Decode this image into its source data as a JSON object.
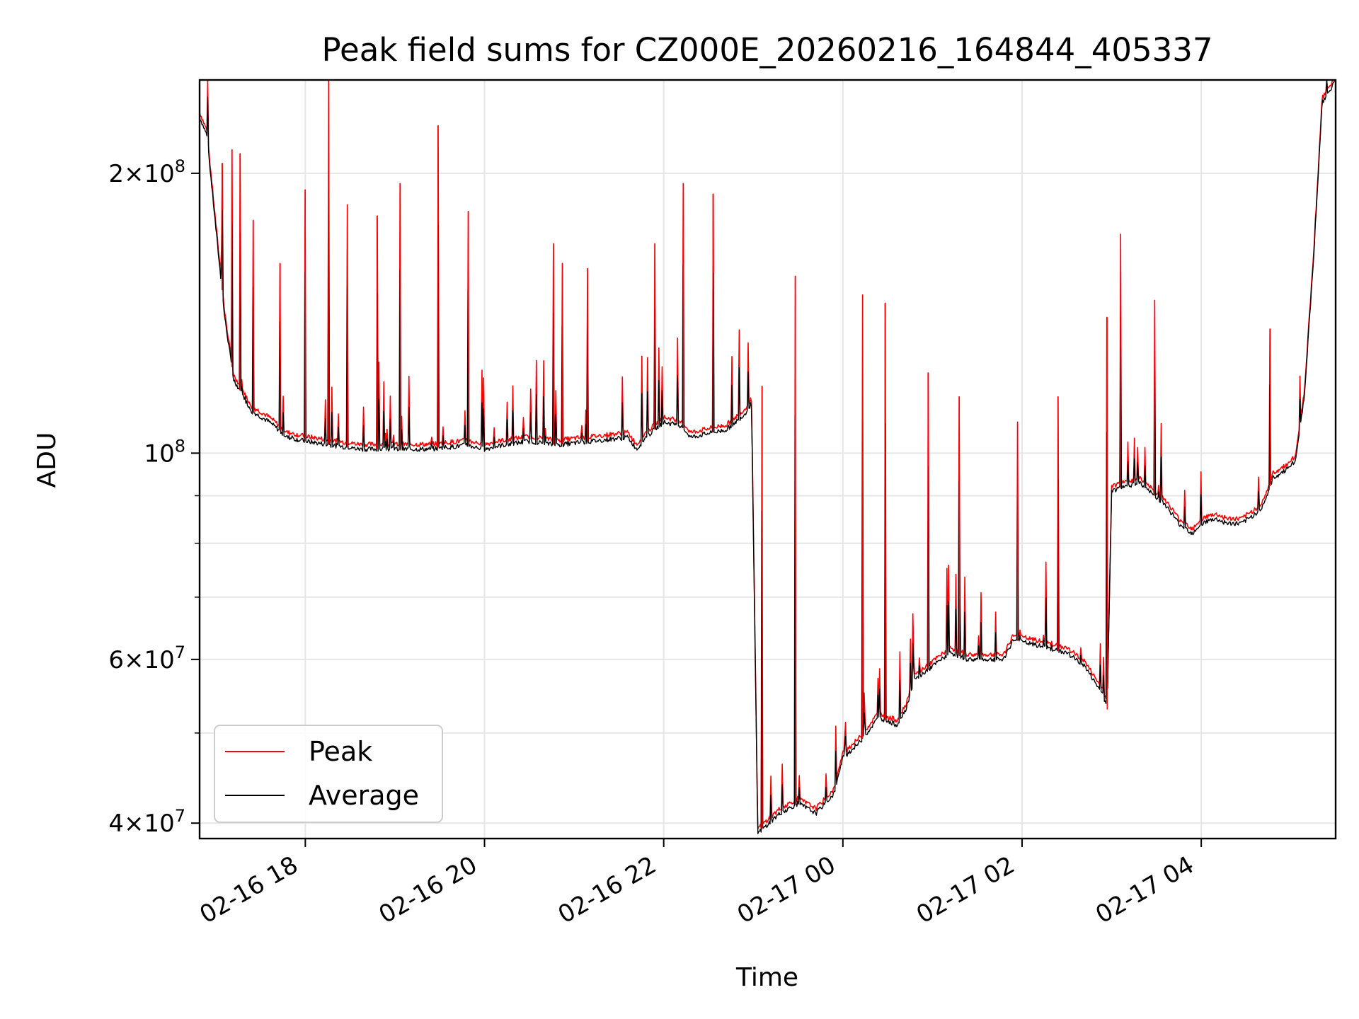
{
  "chart_data": {
    "type": "line",
    "title": "Peak field sums for CZ000E_20260216_164844_405337",
    "xlabel": "Time",
    "ylabel": "ADU",
    "yscale": "log",
    "ylim": [
      38500000,
      252000000
    ],
    "xlim_hours": [
      16.82,
      29.5
    ],
    "x_ticks": [
      {
        "label": "02-16 18",
        "hour": 18
      },
      {
        "label": "02-16 20",
        "hour": 20
      },
      {
        "label": "02-16 22",
        "hour": 22
      },
      {
        "label": "02-17 00",
        "hour": 24
      },
      {
        "label": "02-17 02",
        "hour": 26
      },
      {
        "label": "02-17 04",
        "hour": 28
      }
    ],
    "y_ticks": [
      {
        "base": "4",
        "exp": "7",
        "value": 40000000
      },
      {
        "base": "6",
        "exp": "7",
        "value": 60000000
      },
      {
        "base": "10",
        "exp": "8",
        "value": 100000000,
        "only_power": true
      },
      {
        "base": "2",
        "exp": "8",
        "value": 200000000
      }
    ],
    "y_minor_ticks": [
      50000000,
      70000000,
      80000000,
      90000000
    ],
    "grid": true,
    "legend": {
      "position": "lower-left",
      "entries": [
        {
          "name": "Peak",
          "color": "#ff0000"
        },
        {
          "name": "Average",
          "color": "#000000"
        }
      ]
    },
    "series": [
      {
        "name": "Average",
        "color": "#000000",
        "x": [
          16.82,
          16.9,
          17.0,
          17.1,
          17.2,
          17.4,
          17.6,
          17.8,
          18.0,
          18.3,
          18.6,
          19.0,
          19.4,
          19.8,
          20.0,
          20.2,
          20.5,
          20.8,
          21.2,
          21.6,
          21.7,
          21.8,
          22.0,
          22.2,
          22.3,
          22.5,
          22.7,
          22.9,
          22.95,
          22.98,
          23.05,
          23.3,
          23.5,
          23.7,
          23.9,
          24.0,
          24.2,
          24.4,
          24.6,
          24.7,
          24.8,
          25.0,
          25.2,
          25.4,
          25.6,
          25.8,
          25.9,
          26.2,
          26.5,
          26.7,
          26.9,
          26.95,
          27.0,
          27.3,
          27.6,
          27.75,
          27.9,
          28.0,
          28.15,
          28.3,
          28.45,
          28.6,
          28.7,
          28.8,
          28.95,
          29.05,
          29.15,
          29.25,
          29.35,
          29.5
        ],
        "values": [
          230000000,
          220000000,
          175000000,
          140000000,
          120000000,
          111000000,
          108000000,
          104000000,
          103000000,
          102000000,
          101000000,
          101000000,
          101000000,
          102000000,
          101000000,
          102000000,
          103000000,
          102000000,
          103000000,
          104000000,
          101000000,
          104000000,
          108000000,
          107000000,
          104000000,
          105000000,
          106000000,
          110000000,
          112000000,
          113000000,
          39000000,
          41000000,
          42000000,
          41000000,
          43000000,
          47000000,
          49000000,
          52000000,
          51000000,
          53000000,
          57000000,
          59000000,
          61000000,
          60000000,
          60000000,
          60000000,
          63000000,
          62000000,
          61000000,
          59000000,
          55000000,
          53000000,
          91000000,
          93000000,
          88000000,
          84000000,
          82000000,
          84000000,
          85000000,
          84000000,
          84000000,
          86000000,
          88000000,
          94000000,
          96000000,
          98000000,
          115000000,
          160000000,
          238000000,
          252000000
        ]
      },
      {
        "name": "Peak",
        "color": "#ff0000",
        "x": [
          17.07,
          17.18,
          17.27,
          17.42,
          17.72,
          18.0,
          18.26,
          18.47,
          18.8,
          19.06,
          19.48,
          19.82,
          20.77,
          20.87,
          21.15,
          21.9,
          22.22,
          22.55,
          23.1,
          23.47,
          24.22,
          24.47,
          24.95,
          25.3,
          25.95,
          26.4,
          26.95,
          27.1,
          27.48,
          28.77
        ],
        "values": [
          205000000,
          212000000,
          210000000,
          178000000,
          160000000,
          192000000,
          252000000,
          185000000,
          180000000,
          195000000,
          225000000,
          182000000,
          168000000,
          160000000,
          158000000,
          168000000,
          195000000,
          190000000,
          118000000,
          155000000,
          148000000,
          145000000,
          122000000,
          115000000,
          108000000,
          115000000,
          140000000,
          172000000,
          146000000,
          136000000
        ]
      }
    ]
  }
}
